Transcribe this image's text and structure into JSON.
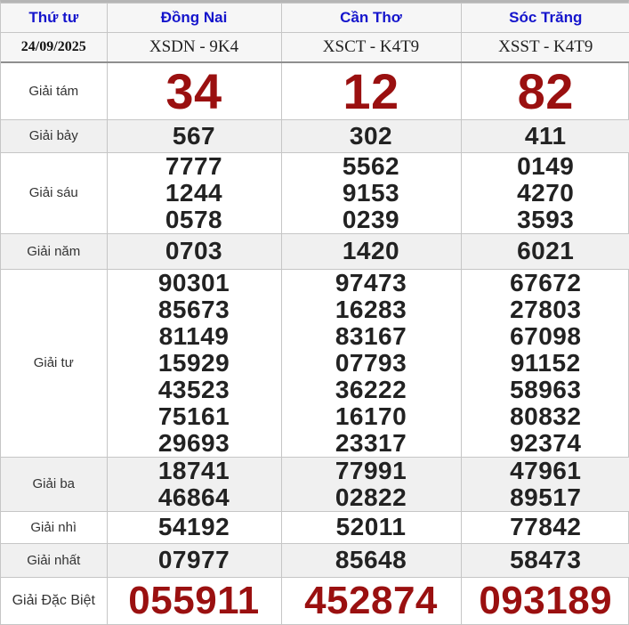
{
  "colors": {
    "header_link_blue": "#1515cc",
    "highlight_red": "#9a1010",
    "number_black": "#222222",
    "alt_row_gray": "#f0f0f0"
  },
  "table": {
    "header": {
      "day": "Thứ tư",
      "provinces": [
        "Đồng Nai",
        "Cần Thơ",
        "Sóc Trăng"
      ]
    },
    "draw_info": {
      "date": "24/09/2025",
      "codes": [
        "XSDN - 9K4",
        "XSCT - K4T9",
        "XSST - K4T9"
      ]
    },
    "rows": [
      {
        "label": "Giải tám",
        "values": [
          [
            "34"
          ],
          [
            "12"
          ],
          [
            "82"
          ]
        ]
      },
      {
        "label": "Giải bảy",
        "values": [
          [
            "567"
          ],
          [
            "302"
          ],
          [
            "411"
          ]
        ]
      },
      {
        "label": "Giải sáu",
        "values": [
          [
            "7777",
            "1244",
            "0578"
          ],
          [
            "5562",
            "9153",
            "0239"
          ],
          [
            "0149",
            "4270",
            "3593"
          ]
        ]
      },
      {
        "label": "Giải năm",
        "values": [
          [
            "0703"
          ],
          [
            "1420"
          ],
          [
            "6021"
          ]
        ]
      },
      {
        "label": "Giải tư",
        "values": [
          [
            "90301",
            "85673",
            "81149",
            "15929",
            "43523",
            "75161",
            "29693"
          ],
          [
            "97473",
            "16283",
            "83167",
            "07793",
            "36222",
            "16170",
            "23317"
          ],
          [
            "67672",
            "27803",
            "67098",
            "91152",
            "58963",
            "80832",
            "92374"
          ]
        ]
      },
      {
        "label": "Giải ba",
        "values": [
          [
            "18741",
            "46864"
          ],
          [
            "77991",
            "02822"
          ],
          [
            "47961",
            "89517"
          ]
        ]
      },
      {
        "label": "Giải nhì",
        "values": [
          [
            "54192"
          ],
          [
            "52011"
          ],
          [
            "77842"
          ]
        ]
      },
      {
        "label": "Giải nhất",
        "values": [
          [
            "07977"
          ],
          [
            "85648"
          ],
          [
            "58473"
          ]
        ]
      },
      {
        "label": "Giải Đặc Biệt",
        "values": [
          [
            "055911"
          ],
          [
            "452874"
          ],
          [
            "093189"
          ]
        ]
      }
    ]
  }
}
